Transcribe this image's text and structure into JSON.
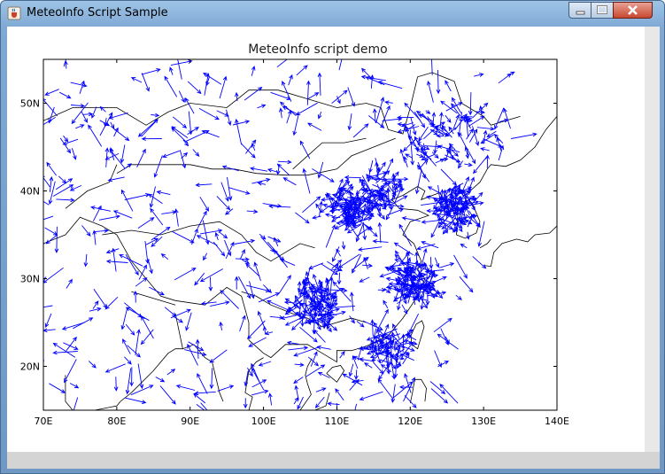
{
  "window": {
    "title": "MeteoInfo Script Sample",
    "icon": "java-cup-icon",
    "controls": [
      "minimize-icon",
      "maximize-icon",
      "close-icon"
    ]
  },
  "colors": {
    "vectors": "#0000ff",
    "coastline": "#000000",
    "close_button": "#c8472f"
  },
  "chart_data": {
    "type": "scatter",
    "title": "MeteoInfo script demo",
    "xlabel": "",
    "ylabel": "",
    "xlim": [
      70,
      140
    ],
    "ylim": [
      15,
      55
    ],
    "x_ticks": [
      "70E",
      "80E",
      "90E",
      "100E",
      "110E",
      "120E",
      "130E",
      "140E"
    ],
    "y_ticks": [
      "20N",
      "30N",
      "40N",
      "50N"
    ],
    "grid": false,
    "legend": "none",
    "series_style": "wind vector arrows over coastline/border map",
    "dense_clusters": [
      {
        "lon": 107,
        "lat": 27
      },
      {
        "lon": 111.5,
        "lat": 38
      },
      {
        "lon": 120.5,
        "lat": 30
      },
      {
        "lon": 126,
        "lat": 38
      },
      {
        "lon": 124,
        "lat": 46
      },
      {
        "lon": 116,
        "lat": 40
      },
      {
        "lon": 117,
        "lat": 22
      }
    ]
  }
}
